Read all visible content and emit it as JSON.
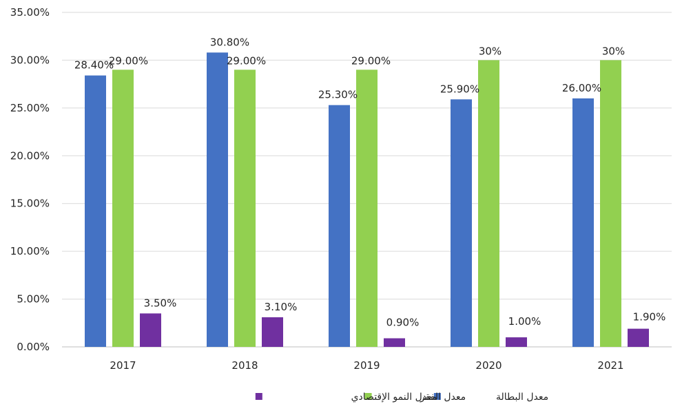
{
  "chart_data": {
    "type": "bar",
    "title": "",
    "xlabel": "",
    "ylabel": "",
    "categories": [
      "2017",
      "2018",
      "2019",
      "2020",
      "2021"
    ],
    "ylim": [
      0,
      35
    ],
    "yticks": [
      "0.00%",
      "5.00%",
      "10.00%",
      "15.00%",
      "20.00%",
      "25.00%",
      "30.00%",
      "35.00%"
    ],
    "grid": true,
    "legend_position": "bottom",
    "series": [
      {
        "name": "معدل البطالة",
        "color": "#4472C4",
        "values": [
          28.4,
          30.8,
          25.3,
          25.9,
          26.0
        ],
        "labels": [
          "28.40%",
          "30.80%",
          "25.30%",
          "25.90%",
          "26.00%"
        ]
      },
      {
        "name": "معدل الفقر",
        "color": "#92D050",
        "values": [
          29.0,
          29.0,
          29.0,
          30.0,
          30.0
        ],
        "labels": [
          "29.00%",
          "29.00%",
          "29.00%",
          "30%",
          "30%"
        ]
      },
      {
        "name": "معدل النمو الإقتصادي",
        "color": "#7030A0",
        "values": [
          3.5,
          3.1,
          0.9,
          1.0,
          1.9
        ],
        "labels": [
          "3.50%",
          "3.10%",
          "0.90%",
          "1.00%",
          "1.90%"
        ]
      }
    ]
  }
}
